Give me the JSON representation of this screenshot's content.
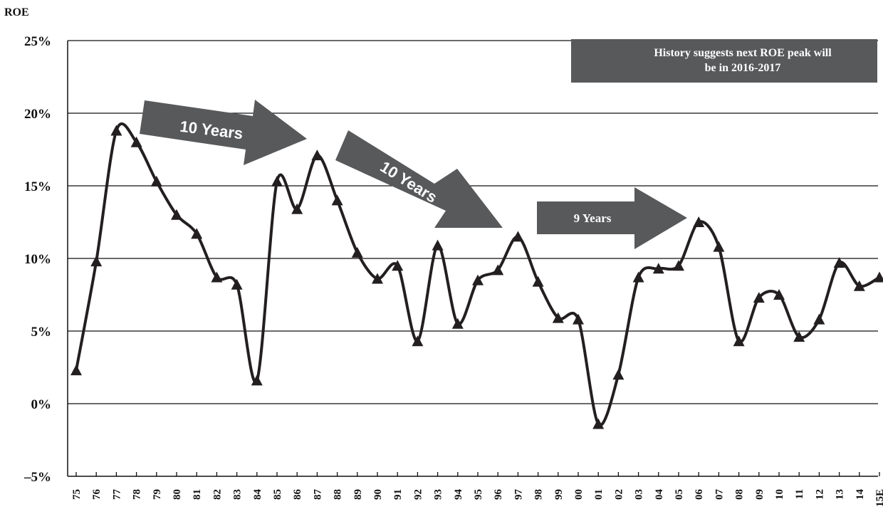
{
  "chart_data": {
    "type": "line",
    "title": "",
    "ylabel": "ROE",
    "xlabel": "",
    "ylim": [
      -5,
      25
    ],
    "y_ticks": [
      "25%",
      "20%",
      "15%",
      "10%",
      "5%",
      "0%",
      "–5%"
    ],
    "y_tick_values": [
      25,
      20,
      15,
      10,
      5,
      0,
      -5
    ],
    "grid": "horizontal",
    "categories": [
      "75",
      "76",
      "77",
      "78",
      "79",
      "80",
      "81",
      "82",
      "83",
      "84",
      "85",
      "86",
      "87",
      "88",
      "89",
      "90",
      "91",
      "92",
      "93",
      "94",
      "95",
      "96",
      "97",
      "98",
      "99",
      "00",
      "01",
      "02",
      "03",
      "04",
      "05",
      "06",
      "07",
      "08",
      "09",
      "10",
      "11",
      "12",
      "13",
      "14",
      "15E"
    ],
    "series": [
      {
        "name": "",
        "marker": "triangle",
        "color": "#231f20",
        "values": [
          2.3,
          9.8,
          18.8,
          18.0,
          15.3,
          13.0,
          11.7,
          8.7,
          8.2,
          1.6,
          15.3,
          13.4,
          17.1,
          14.0,
          10.4,
          8.6,
          9.5,
          4.3,
          10.9,
          5.5,
          8.5,
          9.2,
          11.5,
          8.4,
          5.9,
          5.8,
          -1.4,
          2.0,
          8.7,
          9.3,
          9.5,
          12.5,
          10.8,
          4.3,
          7.3,
          7.5,
          4.6,
          5.8,
          9.7,
          8.1,
          8.7
        ]
      }
    ],
    "annotations": [
      {
        "text": "10 Years",
        "kind": "arrow",
        "from": "77",
        "to": "87",
        "color": "#58595b"
      },
      {
        "text": "10 Years",
        "kind": "arrow",
        "from": "87",
        "to": "97",
        "color": "#58595b"
      },
      {
        "text": "9 Years",
        "kind": "arrow",
        "from": "97",
        "to": "06",
        "color": "#58595b"
      }
    ],
    "note_box": {
      "line1": "History suggests next ROE peak will",
      "line2": "be in 2016-2017",
      "color": "#58595b"
    }
  }
}
